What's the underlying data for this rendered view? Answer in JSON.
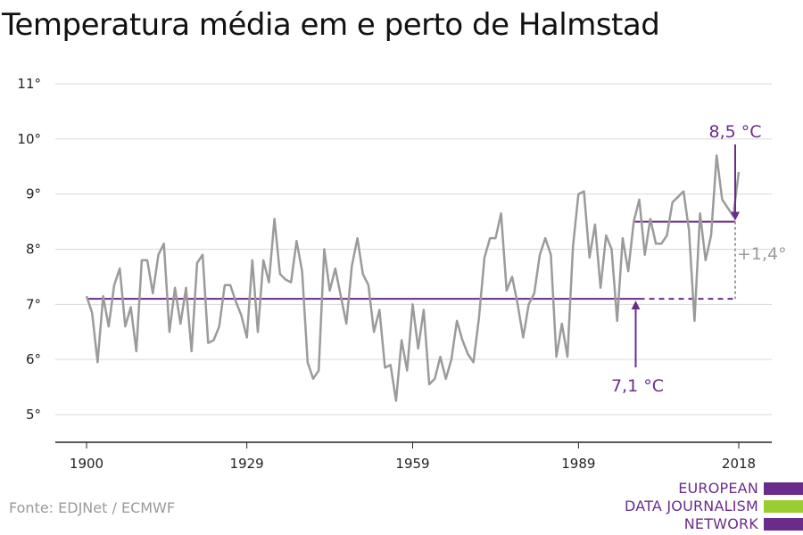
{
  "title": "Temperatura média em e perto de Halmstad",
  "source": "Fonte: EDJNet / ECMWF",
  "logo": {
    "lines": [
      "EUROPEAN",
      "DATA JOURNALISM",
      "NETWORK"
    ],
    "colors": [
      "#6a2c8a",
      "#9acd32",
      "#6a2c8a"
    ]
  },
  "colors": {
    "series": "#9b9b9b",
    "accent": "#6a2c8a",
    "grid": "#d9d9d9",
    "axis": "#222222"
  },
  "chart_data": {
    "type": "line",
    "title": "Temperatura média em e perto de Halmstad",
    "xlabel": "",
    "ylabel": "",
    "ylim": [
      5,
      11
    ],
    "xlim": [
      1900,
      2018
    ],
    "xticks": [
      1900,
      1929,
      1959,
      1989,
      2018
    ],
    "xtick_labels": [
      "1900",
      "1929",
      "1959",
      "1989",
      "2018"
    ],
    "yticks": [
      5,
      6,
      7,
      8,
      9,
      10,
      11
    ],
    "ytick_labels": [
      "5°",
      "6°",
      "7°",
      "8°",
      "9°",
      "10°",
      "11°"
    ],
    "grid": true,
    "series": [
      {
        "x": [
          1900,
          1901,
          1902,
          1903,
          1904,
          1905,
          1906,
          1907,
          1908,
          1909,
          1910,
          1911,
          1912,
          1913,
          1914,
          1915,
          1916,
          1917,
          1918,
          1919,
          1920,
          1921,
          1922,
          1923,
          1924,
          1925,
          1926,
          1927,
          1928,
          1929,
          1930,
          1931,
          1932,
          1933,
          1934,
          1935,
          1936,
          1937,
          1938,
          1939,
          1940,
          1941,
          1942,
          1943,
          1944,
          1945,
          1946,
          1947,
          1948,
          1949,
          1950,
          1951,
          1952,
          1953,
          1954,
          1955,
          1956,
          1957,
          1958,
          1959,
          1960,
          1961,
          1962,
          1963,
          1964,
          1965,
          1966,
          1967,
          1968,
          1969,
          1970,
          1971,
          1972,
          1973,
          1974,
          1975,
          1976,
          1977,
          1978,
          1979,
          1980,
          1981,
          1982,
          1983,
          1984,
          1985,
          1986,
          1987,
          1988,
          1989,
          1990,
          1991,
          1992,
          1993,
          1994,
          1995,
          1996,
          1997,
          1998,
          1999,
          2000,
          2001,
          2002,
          2003,
          2004,
          2005,
          2006,
          2007,
          2008,
          2009,
          2010,
          2011,
          2012,
          2013,
          2014,
          2015,
          2016,
          2017,
          2018
        ],
        "values": [
          7.15,
          6.85,
          5.95,
          7.15,
          6.6,
          7.35,
          7.65,
          6.6,
          6.95,
          6.15,
          7.8,
          7.8,
          7.2,
          7.9,
          8.1,
          6.5,
          7.3,
          6.65,
          7.3,
          6.15,
          7.75,
          7.9,
          6.3,
          6.35,
          6.6,
          7.35,
          7.35,
          7.05,
          6.8,
          6.4,
          7.8,
          6.5,
          7.8,
          7.4,
          8.55,
          7.55,
          7.45,
          7.4,
          8.15,
          7.6,
          5.95,
          5.65,
          5.8,
          8.0,
          7.25,
          7.65,
          7.15,
          6.65,
          7.7,
          8.2,
          7.55,
          7.35,
          6.5,
          6.9,
          5.85,
          5.9,
          5.25,
          6.35,
          5.8,
          7.0,
          6.2,
          6.9,
          5.55,
          5.65,
          6.05,
          5.65,
          6.0,
          6.7,
          6.35,
          6.1,
          5.95,
          6.75,
          7.85,
          8.2,
          8.2,
          8.65,
          7.25,
          7.5,
          7.0,
          6.4,
          7.0,
          7.2,
          7.9,
          8.2,
          7.9,
          6.05,
          6.65,
          6.05,
          8.05,
          9.0,
          9.05,
          7.85,
          8.45,
          7.3,
          8.25,
          8.0,
          6.7,
          8.2,
          7.6,
          8.5,
          8.9,
          7.9,
          8.55,
          8.1,
          8.1,
          8.25,
          8.85,
          8.95,
          9.05,
          8.35,
          6.7,
          8.65,
          7.8,
          8.25,
          9.7,
          8.9,
          8.75,
          8.6,
          9.4
        ]
      }
    ],
    "reference_lines": [
      {
        "label": "7,1 °C",
        "value": 7.1,
        "from": 1900,
        "to": 2000,
        "dashed_to": 2018
      },
      {
        "label": "8,5 °C",
        "value": 8.5,
        "from": 2000,
        "to": 2018
      }
    ],
    "difference_label": "+1,4°"
  }
}
